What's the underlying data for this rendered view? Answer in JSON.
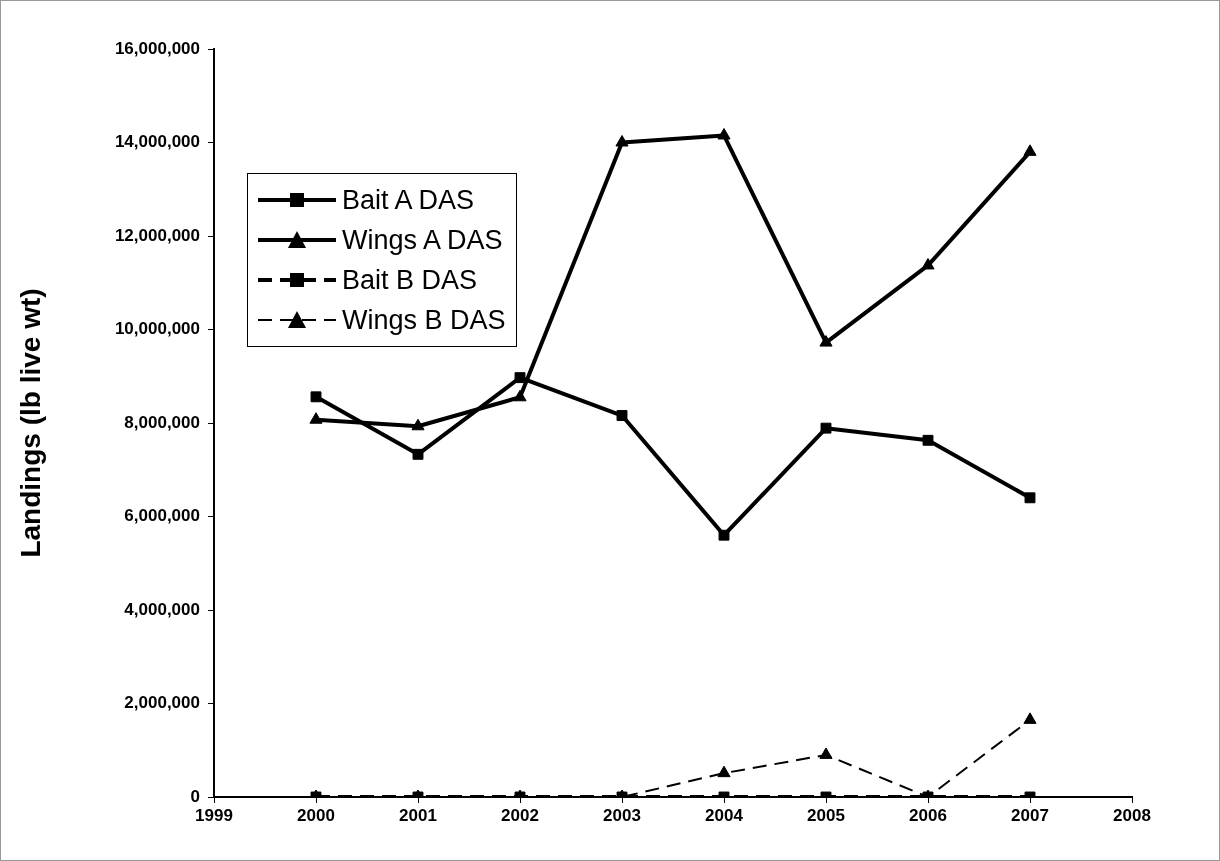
{
  "chart_data": {
    "type": "line",
    "ylabel": "Landings (lb live wt)",
    "x": [
      2000,
      2001,
      2002,
      2003,
      2004,
      2005,
      2006,
      2007
    ],
    "series": [
      {
        "name": "Bait A DAS",
        "color": "#000000",
        "marker": "square",
        "line_style": "solid",
        "values": [
          8560000,
          7330000,
          8970000,
          8160000,
          5600000,
          7890000,
          7630000,
          6400000
        ]
      },
      {
        "name": "Wings A DAS",
        "color": "#000000",
        "marker": "triangle",
        "line_style": "solid",
        "values": [
          8070000,
          7930000,
          8550000,
          14000000,
          14150000,
          9720000,
          11370000,
          13800000
        ]
      },
      {
        "name": "Bait B DAS",
        "color": "#000000",
        "marker": "square",
        "line_style": "dashed",
        "values": [
          0,
          0,
          0,
          0,
          0,
          0,
          0,
          0
        ]
      },
      {
        "name": "Wings B DAS",
        "color": "#000000",
        "marker": "triangle",
        "line_style": "dashed",
        "values": [
          0,
          0,
          0,
          0,
          510000,
          900000,
          0,
          1650000
        ]
      }
    ],
    "xlim": [
      1999,
      2008
    ],
    "xticks": [
      1999,
      2000,
      2001,
      2002,
      2003,
      2004,
      2005,
      2006,
      2007,
      2008
    ],
    "ylim": [
      0,
      16000000
    ],
    "yticks": [
      {
        "value": 0,
        "label": "0"
      },
      {
        "value": 2000000,
        "label": "2,000,000"
      },
      {
        "value": 4000000,
        "label": "4,000,000"
      },
      {
        "value": 6000000,
        "label": "6,000,000"
      },
      {
        "value": 8000000,
        "label": "8,000,000"
      },
      {
        "value": 10000000,
        "label": "10,000,000"
      },
      {
        "value": 12000000,
        "label": "12,000,000"
      },
      {
        "value": 14000000,
        "label": "14,000,000"
      },
      {
        "value": 16000000,
        "label": "16,000,000"
      }
    ],
    "grid": false,
    "legend": "top left"
  }
}
